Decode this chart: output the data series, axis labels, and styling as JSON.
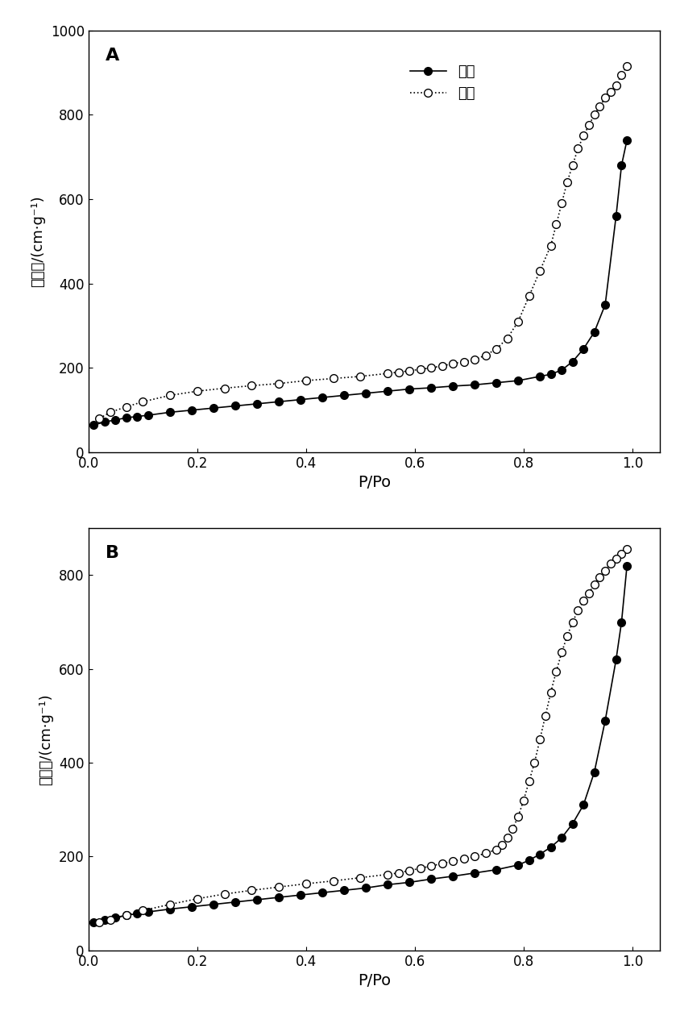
{
  "panel_A": {
    "label": "A",
    "adsorption_x": [
      0.01,
      0.03,
      0.05,
      0.07,
      0.09,
      0.11,
      0.15,
      0.19,
      0.23,
      0.27,
      0.31,
      0.35,
      0.39,
      0.43,
      0.47,
      0.51,
      0.55,
      0.59,
      0.63,
      0.67,
      0.71,
      0.75,
      0.79,
      0.83,
      0.85,
      0.87,
      0.89,
      0.91,
      0.93,
      0.95,
      0.97,
      0.98,
      0.99
    ],
    "adsorption_y": [
      65,
      72,
      77,
      82,
      85,
      88,
      95,
      100,
      105,
      110,
      115,
      120,
      125,
      130,
      135,
      140,
      145,
      150,
      153,
      157,
      160,
      165,
      170,
      180,
      185,
      195,
      215,
      245,
      285,
      350,
      560,
      680,
      740
    ],
    "desorption_x": [
      0.99,
      0.98,
      0.97,
      0.96,
      0.95,
      0.94,
      0.93,
      0.92,
      0.91,
      0.9,
      0.89,
      0.88,
      0.87,
      0.86,
      0.85,
      0.83,
      0.81,
      0.79,
      0.77,
      0.75,
      0.73,
      0.71,
      0.69,
      0.67,
      0.65,
      0.63,
      0.61,
      0.59,
      0.57,
      0.55,
      0.5,
      0.45,
      0.4,
      0.35,
      0.3,
      0.25,
      0.2,
      0.15,
      0.1,
      0.07,
      0.04,
      0.02
    ],
    "desorption_y": [
      915,
      895,
      870,
      855,
      840,
      820,
      800,
      775,
      750,
      720,
      680,
      640,
      590,
      540,
      490,
      430,
      370,
      310,
      270,
      245,
      230,
      220,
      215,
      210,
      205,
      200,
      197,
      193,
      190,
      187,
      180,
      175,
      170,
      163,
      158,
      152,
      145,
      135,
      120,
      108,
      95,
      80
    ],
    "ylim": [
      0,
      1000
    ],
    "yticks": [
      0,
      200,
      400,
      600,
      800,
      1000
    ],
    "xlim": [
      0.0,
      1.05
    ]
  },
  "panel_B": {
    "label": "B",
    "adsorption_x": [
      0.01,
      0.03,
      0.05,
      0.07,
      0.09,
      0.11,
      0.15,
      0.19,
      0.23,
      0.27,
      0.31,
      0.35,
      0.39,
      0.43,
      0.47,
      0.51,
      0.55,
      0.59,
      0.63,
      0.67,
      0.71,
      0.75,
      0.79,
      0.81,
      0.83,
      0.85,
      0.87,
      0.89,
      0.91,
      0.93,
      0.95,
      0.97,
      0.98,
      0.99
    ],
    "adsorption_y": [
      60,
      65,
      70,
      75,
      78,
      82,
      88,
      93,
      98,
      103,
      108,
      113,
      118,
      123,
      128,
      133,
      140,
      145,
      152,
      158,
      165,
      172,
      182,
      192,
      205,
      220,
      240,
      270,
      310,
      380,
      490,
      620,
      700,
      820
    ],
    "desorption_x": [
      0.99,
      0.98,
      0.97,
      0.96,
      0.95,
      0.94,
      0.93,
      0.92,
      0.91,
      0.9,
      0.89,
      0.88,
      0.87,
      0.86,
      0.85,
      0.84,
      0.83,
      0.82,
      0.81,
      0.8,
      0.79,
      0.78,
      0.77,
      0.76,
      0.75,
      0.73,
      0.71,
      0.69,
      0.67,
      0.65,
      0.63,
      0.61,
      0.59,
      0.57,
      0.55,
      0.5,
      0.45,
      0.4,
      0.35,
      0.3,
      0.25,
      0.2,
      0.15,
      0.1,
      0.07,
      0.04,
      0.02
    ],
    "desorption_y": [
      855,
      845,
      835,
      825,
      810,
      795,
      780,
      762,
      745,
      725,
      700,
      670,
      635,
      595,
      550,
      500,
      450,
      400,
      360,
      320,
      285,
      260,
      240,
      225,
      215,
      207,
      200,
      195,
      190,
      185,
      180,
      175,
      170,
      165,
      162,
      155,
      148,
      142,
      135,
      128,
      120,
      110,
      98,
      85,
      75,
      65,
      60
    ],
    "ylim": [
      0,
      900
    ],
    "yticks": [
      0,
      200,
      400,
      600,
      800
    ],
    "xlim": [
      0.0,
      1.05
    ]
  },
  "xlabel": "P/Po",
  "ylabel": "吸附量/(cm·g⁻¹)",
  "legend_adsorption": "吸附",
  "legend_desorption": "脱附",
  "xticks": [
    0.0,
    0.2,
    0.4,
    0.6,
    0.8,
    1.0
  ],
  "bg_color": "#ffffff",
  "line_color": "#000000",
  "marker_size": 7,
  "linewidth": 1.2
}
